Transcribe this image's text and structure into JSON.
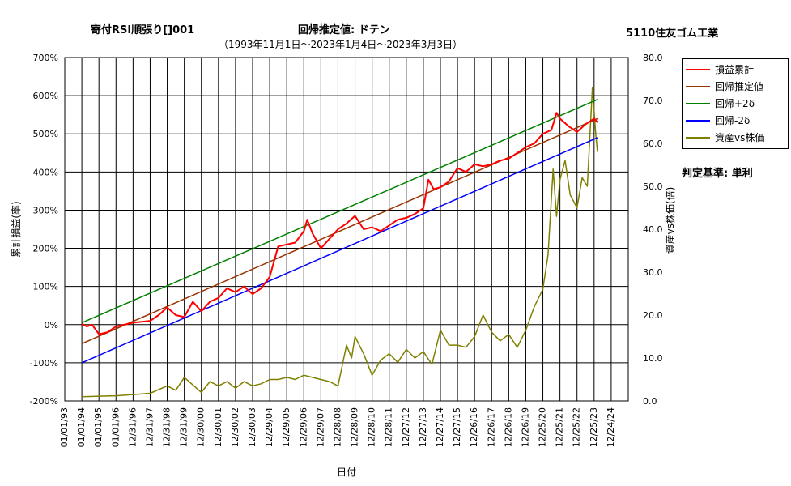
{
  "header": {
    "strategy": "寄付RSI順張り[]001",
    "regression": "回帰推定値: ドテン",
    "period": "（1993年11月1日〜2023年1月4日〜2023年3月3日）",
    "ticker": "5110住友ゴム工業"
  },
  "criterion": "判定基準: 単利",
  "colors": {
    "pnl": "#ff0000",
    "regression": "#993300",
    "upper": "#008000",
    "lower": "#0000ff",
    "asset": "#808000",
    "grid": "#000000"
  },
  "chart_data": {
    "type": "line",
    "xlabel": "日付",
    "ylabel_left": "累計損益(率)",
    "ylabel_right": "資産vs株価(倍)",
    "y_left_ticks": [
      "700%",
      "600%",
      "500%",
      "400%",
      "300%",
      "200%",
      "100%",
      "0%",
      "-100%",
      "-200%"
    ],
    "y_right_ticks": [
      "80.0",
      "70.0",
      "60.0",
      "50.0",
      "40.0",
      "30.0",
      "20.0",
      "10.0",
      "0.0"
    ],
    "ylim_left": [
      -200,
      700
    ],
    "ylim_right": [
      0,
      80
    ],
    "x_ticks": [
      "01/01/93",
      "01/01/94",
      "01/01/95",
      "01/01/96",
      "12/31/96",
      "12/31/97",
      "12/31/98",
      "12/31/99",
      "12/30/00",
      "12/30/01",
      "12/30/02",
      "12/30/03",
      "12/29/04",
      "12/29/05",
      "12/29/06",
      "12/29/07",
      "12/28/08",
      "12/28/09",
      "12/28/10",
      "12/28/11",
      "12/27/12",
      "12/27/13",
      "12/27/14",
      "12/27/15",
      "12/26/16",
      "12/26/17",
      "12/26/18",
      "12/26/19",
      "12/25/20",
      "12/25/21",
      "12/25/22",
      "12/25/23",
      "12/24/24"
    ],
    "legend_position": "top-right, outside plot",
    "grid": true,
    "series": [
      {
        "name": "損益累計",
        "axis": "left",
        "color": "#ff0000",
        "points": [
          [
            1.0,
            2
          ],
          [
            1.3,
            -5
          ],
          [
            1.6,
            0
          ],
          [
            2.0,
            -25
          ],
          [
            2.5,
            -20
          ],
          [
            3.0,
            -5
          ],
          [
            4.0,
            5
          ],
          [
            5.0,
            10
          ],
          [
            5.5,
            25
          ],
          [
            6.0,
            45
          ],
          [
            6.5,
            25
          ],
          [
            7.0,
            20
          ],
          [
            7.5,
            60
          ],
          [
            8.0,
            35
          ],
          [
            8.5,
            60
          ],
          [
            9.0,
            70
          ],
          [
            9.5,
            95
          ],
          [
            10.0,
            85
          ],
          [
            10.5,
            100
          ],
          [
            11.0,
            80
          ],
          [
            11.5,
            95
          ],
          [
            12.0,
            125
          ],
          [
            12.5,
            205
          ],
          [
            13.0,
            210
          ],
          [
            13.5,
            215
          ],
          [
            14.0,
            245
          ],
          [
            14.2,
            275
          ],
          [
            14.5,
            240
          ],
          [
            15.0,
            200
          ],
          [
            15.5,
            225
          ],
          [
            16.0,
            250
          ],
          [
            16.5,
            265
          ],
          [
            17.0,
            285
          ],
          [
            17.5,
            250
          ],
          [
            18.0,
            255
          ],
          [
            18.5,
            245
          ],
          [
            19.0,
            260
          ],
          [
            19.5,
            275
          ],
          [
            20.0,
            280
          ],
          [
            20.5,
            290
          ],
          [
            21.0,
            305
          ],
          [
            21.3,
            380
          ],
          [
            21.6,
            355
          ],
          [
            22.0,
            360
          ],
          [
            22.5,
            375
          ],
          [
            23.0,
            410
          ],
          [
            23.5,
            400
          ],
          [
            24.0,
            420
          ],
          [
            24.5,
            415
          ],
          [
            25.0,
            420
          ],
          [
            25.5,
            430
          ],
          [
            26.0,
            435
          ],
          [
            26.5,
            450
          ],
          [
            27.0,
            465
          ],
          [
            27.5,
            475
          ],
          [
            28.0,
            500
          ],
          [
            28.5,
            510
          ],
          [
            28.8,
            555
          ],
          [
            29.0,
            540
          ],
          [
            29.5,
            520
          ],
          [
            30.0,
            505
          ],
          [
            30.5,
            525
          ],
          [
            31.0,
            540
          ],
          [
            31.2,
            530
          ]
        ]
      },
      {
        "name": "回帰推定値",
        "axis": "left",
        "color": "#993300",
        "points": [
          [
            1.0,
            -50
          ],
          [
            31.2,
            540
          ]
        ]
      },
      {
        "name": "回帰+2δ",
        "axis": "left",
        "color": "#008000",
        "points": [
          [
            1.0,
            5
          ],
          [
            31.2,
            590
          ]
        ]
      },
      {
        "name": "回帰-2δ",
        "axis": "left",
        "color": "#0000ff",
        "points": [
          [
            1.0,
            -100
          ],
          [
            31.2,
            490
          ]
        ]
      },
      {
        "name": "資産vs株価",
        "axis": "right",
        "color": "#808000",
        "points": [
          [
            1.0,
            1.0
          ],
          [
            3.0,
            1.2
          ],
          [
            4.0,
            1.5
          ],
          [
            5.0,
            1.8
          ],
          [
            6.0,
            3.5
          ],
          [
            6.5,
            2.5
          ],
          [
            7.0,
            5.5
          ],
          [
            8.0,
            2.0
          ],
          [
            8.5,
            4.5
          ],
          [
            9.0,
            3.5
          ],
          [
            9.5,
            4.5
          ],
          [
            10.0,
            3.0
          ],
          [
            10.5,
            4.5
          ],
          [
            11.0,
            3.5
          ],
          [
            11.5,
            4.0
          ],
          [
            12.0,
            5.0
          ],
          [
            12.5,
            5.0
          ],
          [
            13.0,
            5.5
          ],
          [
            13.5,
            5.0
          ],
          [
            14.0,
            6.0
          ],
          [
            14.5,
            5.5
          ],
          [
            15.0,
            5.0
          ],
          [
            15.5,
            4.5
          ],
          [
            16.0,
            3.5
          ],
          [
            16.5,
            13.0
          ],
          [
            16.8,
            10.0
          ],
          [
            17.0,
            15.0
          ],
          [
            17.5,
            11.0
          ],
          [
            18.0,
            6.0
          ],
          [
            18.5,
            9.5
          ],
          [
            19.0,
            11.0
          ],
          [
            19.5,
            9.0
          ],
          [
            20.0,
            12.0
          ],
          [
            20.5,
            10.0
          ],
          [
            21.0,
            11.5
          ],
          [
            21.5,
            8.5
          ],
          [
            22.0,
            16.5
          ],
          [
            22.5,
            13.0
          ],
          [
            23.0,
            13.0
          ],
          [
            23.5,
            12.5
          ],
          [
            24.0,
            15.0
          ],
          [
            24.5,
            20.0
          ],
          [
            25.0,
            16.0
          ],
          [
            25.5,
            14.0
          ],
          [
            26.0,
            15.5
          ],
          [
            26.5,
            12.5
          ],
          [
            27.0,
            16.5
          ],
          [
            27.5,
            22.0
          ],
          [
            28.0,
            26.0
          ],
          [
            28.3,
            34.0
          ],
          [
            28.6,
            54.0
          ],
          [
            28.8,
            43.0
          ],
          [
            29.0,
            51.5
          ],
          [
            29.3,
            56.0
          ],
          [
            29.6,
            48.0
          ],
          [
            30.0,
            45.0
          ],
          [
            30.3,
            52.0
          ],
          [
            30.6,
            50.0
          ],
          [
            30.9,
            73.0
          ],
          [
            31.1,
            62.0
          ],
          [
            31.2,
            58.0
          ]
        ]
      }
    ]
  }
}
